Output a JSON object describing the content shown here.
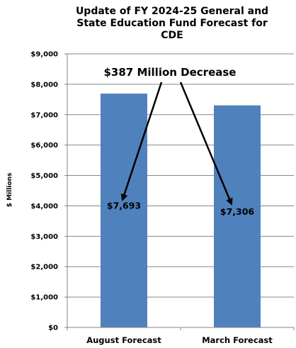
{
  "chart_data": {
    "type": "bar",
    "title": [
      "Update of FY 2024-25 General and",
      "State Education Fund Forecast for",
      "CDE"
    ],
    "ylabel": "$ Millions",
    "xlabel": "",
    "categories": [
      "August Forecast",
      "March Forecast"
    ],
    "values": [
      7693,
      7306
    ],
    "data_labels": [
      "$7,693",
      "$7,306"
    ],
    "ylim": [
      0,
      9000
    ],
    "y_ticks": [
      0,
      1000,
      2000,
      3000,
      4000,
      5000,
      6000,
      7000,
      8000,
      9000
    ],
    "y_tick_labels": [
      "$0",
      "$1,000",
      "$2,000",
      "$3,000",
      "$4,000",
      "$5,000",
      "$6,000",
      "$7,000",
      "$8,000",
      "$9,000"
    ],
    "grid": true,
    "legend": "none",
    "annotation": "$387 Million Decrease",
    "colors": {
      "bar": "#4f81bd",
      "grid": "#868686",
      "axis": "#868686"
    }
  }
}
